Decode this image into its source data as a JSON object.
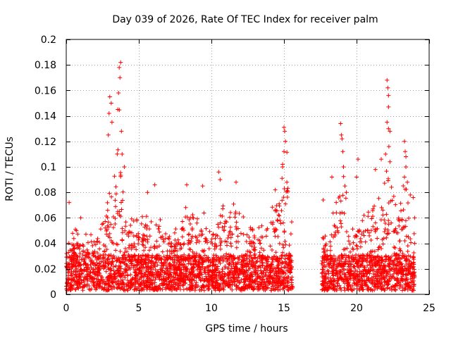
{
  "chart_data": {
    "type": "scatter",
    "title": "Day 039 of 2026, Rate Of TEC Index for receiver palm",
    "xlabel": "GPS time / hours",
    "ylabel": "ROTI / TECUs",
    "xlim": [
      0,
      25
    ],
    "ylim": [
      0,
      0.2
    ],
    "x_ticks": [
      0,
      5,
      10,
      15,
      20,
      25
    ],
    "x_tick_labels": [
      "0",
      "5",
      "10",
      "15",
      "20",
      "25"
    ],
    "y_ticks": [
      0,
      0.02,
      0.04,
      0.06,
      0.08,
      0.1,
      0.12,
      0.14,
      0.16,
      0.18,
      0.2
    ],
    "y_tick_labels": [
      "0",
      "0.02",
      "0.04",
      "0.06",
      "0.08",
      "0.1",
      "0.12",
      "0.14",
      "0.16",
      "0.18",
      "0.2"
    ],
    "grid": true,
    "marker": "+",
    "marker_color": "#ff0000",
    "series": [
      {
        "name": "ROTI",
        "segments": [
          {
            "t_start": 0.0,
            "t_end": 15.6,
            "profile": [
              [
                0.0,
                0.04
              ],
              [
                0.5,
                0.05
              ],
              [
                1.0,
                0.045
              ],
              [
                2.0,
                0.05
              ],
              [
                2.8,
                0.06
              ],
              [
                3.0,
                0.12
              ],
              [
                3.3,
                0.085
              ],
              [
                3.6,
                0.155
              ],
              [
                3.9,
                0.085
              ],
              [
                4.3,
                0.06
              ],
              [
                5.0,
                0.055
              ],
              [
                5.7,
                0.065
              ],
              [
                6.5,
                0.06
              ],
              [
                7.5,
                0.05
              ],
              [
                8.3,
                0.07
              ],
              [
                9.0,
                0.06
              ],
              [
                9.5,
                0.07
              ],
              [
                10.2,
                0.055
              ],
              [
                10.7,
                0.08
              ],
              [
                11.2,
                0.06
              ],
              [
                11.7,
                0.075
              ],
              [
                12.5,
                0.055
              ],
              [
                13.3,
                0.05
              ],
              [
                14.0,
                0.065
              ],
              [
                14.5,
                0.08
              ],
              [
                15.2,
                0.11
              ],
              [
                15.6,
                0.06
              ]
            ]
          },
          {
            "t_start": 17.6,
            "t_end": 24.0,
            "profile": [
              [
                17.6,
                0.045
              ],
              [
                18.2,
                0.05
              ],
              [
                19.0,
                0.1
              ],
              [
                19.5,
                0.055
              ],
              [
                20.3,
                0.06
              ],
              [
                21.0,
                0.065
              ],
              [
                21.5,
                0.07
              ],
              [
                22.2,
                0.13
              ],
              [
                22.7,
                0.065
              ],
              [
                23.3,
                0.09
              ],
              [
                23.7,
                0.07
              ],
              [
                24.0,
                0.05
              ]
            ]
          }
        ],
        "peaks": [
          [
            3.75,
            0.182
          ],
          [
            3.65,
            0.178
          ],
          [
            3.7,
            0.17
          ],
          [
            3.6,
            0.158
          ],
          [
            3.0,
            0.155
          ],
          [
            3.1,
            0.15
          ],
          [
            2.95,
            0.142
          ],
          [
            3.55,
            0.145
          ],
          [
            3.15,
            0.135
          ],
          [
            2.9,
            0.125
          ],
          [
            3.8,
            0.128
          ],
          [
            3.85,
            0.11
          ],
          [
            4.0,
            0.1
          ],
          [
            0.2,
            0.072
          ],
          [
            1.0,
            0.06
          ],
          [
            10.5,
            0.096
          ],
          [
            10.6,
            0.09
          ],
          [
            11.7,
            0.088
          ],
          [
            8.3,
            0.086
          ],
          [
            9.4,
            0.085
          ],
          [
            6.1,
            0.086
          ],
          [
            5.6,
            0.08
          ],
          [
            15.0,
            0.131
          ],
          [
            15.05,
            0.128
          ],
          [
            15.1,
            0.12
          ],
          [
            15.0,
            0.112
          ],
          [
            14.9,
            0.1
          ],
          [
            15.2,
            0.088
          ],
          [
            14.4,
            0.082
          ],
          [
            18.3,
            0.092
          ],
          [
            17.7,
            0.074
          ],
          [
            18.6,
            0.072
          ],
          [
            18.9,
            0.134
          ],
          [
            18.95,
            0.125
          ],
          [
            19.0,
            0.122
          ],
          [
            19.05,
            0.112
          ],
          [
            19.1,
            0.1
          ],
          [
            19.2,
            0.085
          ],
          [
            19.3,
            0.08
          ],
          [
            20.1,
            0.106
          ],
          [
            20.0,
            0.092
          ],
          [
            21.3,
            0.098
          ],
          [
            22.1,
            0.168
          ],
          [
            22.15,
            0.162
          ],
          [
            22.2,
            0.156
          ],
          [
            22.2,
            0.147
          ],
          [
            22.1,
            0.135
          ],
          [
            22.2,
            0.13
          ],
          [
            22.3,
            0.128
          ],
          [
            22.0,
            0.11
          ],
          [
            22.3,
            0.104
          ],
          [
            21.7,
            0.106
          ],
          [
            23.3,
            0.12
          ],
          [
            23.35,
            0.112
          ],
          [
            23.4,
            0.108
          ],
          [
            23.4,
            0.1
          ],
          [
            23.3,
            0.092
          ],
          [
            23.5,
            0.088
          ],
          [
            23.7,
            0.078
          ],
          [
            23.9,
            0.076
          ],
          [
            24.0,
            0.04
          ],
          [
            24.0,
            0.06
          ]
        ]
      }
    ]
  }
}
